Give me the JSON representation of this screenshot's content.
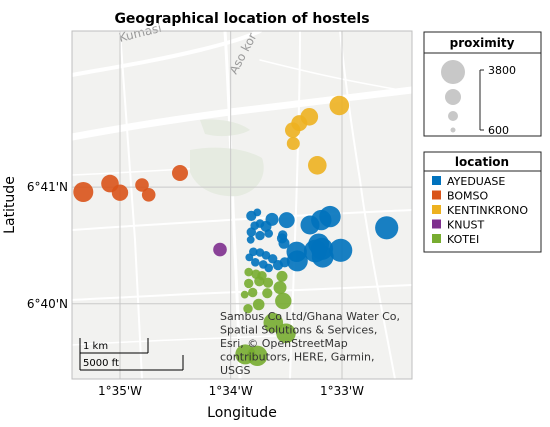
{
  "chart_data": {
    "type": "scatter",
    "title": "Geographical location of hostels",
    "xlabel": "Longitude",
    "ylabel": "Latitude",
    "xlim": [
      -1.5905,
      -1.5395
    ],
    "ylim": [
      6.656,
      6.7055
    ],
    "grid": true,
    "x_ticks": [
      {
        "value": -1.5833,
        "label": "1°35'W"
      },
      {
        "value": -1.5667,
        "label": "1°34'W"
      },
      {
        "value": -1.55,
        "label": "1°33'W"
      }
    ],
    "y_ticks": [
      {
        "value": 6.6833,
        "label": "6°41'N"
      },
      {
        "value": 6.6667,
        "label": "6°40'N"
      }
    ],
    "size_legend": {
      "title": "proximity",
      "max_label": "3800",
      "min_label": "600",
      "max_value": 3800,
      "min_value": 600
    },
    "legend": {
      "title": "location",
      "placement": "right",
      "entries": [
        {
          "name": "AYEDUASE",
          "color": "#0072BD"
        },
        {
          "name": "BOMSO",
          "color": "#D95319"
        },
        {
          "name": "KENTINKRONO",
          "color": "#EDB120"
        },
        {
          "name": "KNUST",
          "color": "#7E2F8E"
        },
        {
          "name": "KOTEI",
          "color": "#77AC30"
        }
      ]
    },
    "series": [
      {
        "name": "AYEDUASE",
        "color": "#0072BD",
        "points": [
          [
            -1.5636,
            6.6792,
            1200
          ],
          [
            -1.5627,
            6.6797,
            900
          ],
          [
            -1.5631,
            6.6778,
            1000
          ],
          [
            -1.5623,
            6.6781,
            1000
          ],
          [
            -1.5614,
            6.6777,
            1300
          ],
          [
            -1.5605,
            6.6787,
            1600
          ],
          [
            -1.5583,
            6.6786,
            2100
          ],
          [
            -1.5548,
            6.6779,
            2700
          ],
          [
            -1.5531,
            6.6786,
            3000
          ],
          [
            -1.5518,
            6.6791,
            3200
          ],
          [
            -1.5433,
            6.6775,
            3600
          ],
          [
            -1.5636,
            6.6769,
            1100
          ],
          [
            -1.5623,
            6.6764,
            1100
          ],
          [
            -1.561,
            6.6767,
            1000
          ],
          [
            -1.559,
            6.676,
            1200
          ],
          [
            -1.5587,
            6.6753,
            1300
          ],
          [
            -1.5568,
            6.6741,
            3000
          ],
          [
            -1.554,
            6.6742,
            3500
          ],
          [
            -1.5535,
            6.6752,
            3100
          ],
          [
            -1.553,
            6.6745,
            3400
          ],
          [
            -1.5502,
            6.6743,
            3600
          ],
          [
            -1.5567,
            6.6728,
            3100
          ],
          [
            -1.5529,
            6.6734,
            3300
          ],
          [
            -1.5633,
            6.6741,
            1000
          ],
          [
            -1.5623,
            6.674,
            1000
          ],
          [
            -1.5614,
            6.6736,
            1000
          ],
          [
            -1.5604,
            6.6731,
            1100
          ],
          [
            -1.5639,
            6.6733,
            900
          ],
          [
            -1.563,
            6.6726,
            1000
          ],
          [
            -1.5618,
            6.6723,
            1000
          ],
          [
            -1.5596,
            6.6722,
            1200
          ],
          [
            -1.5586,
            6.6726,
            1200
          ],
          [
            -1.561,
            6.6718,
            1000
          ],
          [
            -1.5589,
            6.6765,
            1100
          ],
          [
            -1.5637,
            6.6758,
            900
          ]
        ]
      },
      {
        "name": "BOMSO",
        "color": "#D95319",
        "points": [
          [
            -1.5888,
            6.6826,
            2900
          ],
          [
            -1.5848,
            6.6838,
            2400
          ],
          [
            -1.5833,
            6.6825,
            2200
          ],
          [
            -1.58,
            6.6836,
            1700
          ],
          [
            -1.579,
            6.6822,
            1700
          ],
          [
            -1.5743,
            6.6853,
            2100
          ]
        ]
      },
      {
        "name": "KENTINKRONO",
        "color": "#EDB120",
        "points": [
          [
            -1.5504,
            6.6949,
            2800
          ],
          [
            -1.5549,
            6.6933,
            2400
          ],
          [
            -1.5564,
            6.6924,
            2100
          ],
          [
            -1.5574,
            6.6914,
            2000
          ],
          [
            -1.5573,
            6.6895,
            1600
          ],
          [
            -1.5537,
            6.6864,
            2600
          ]
        ]
      },
      {
        "name": "KNUST",
        "color": "#7E2F8E",
        "points": [
          [
            -1.5683,
            6.6744,
            1700
          ]
        ]
      },
      {
        "name": "KOTEI",
        "color": "#77AC30",
        "points": [
          [
            -1.564,
            6.6712,
            1000
          ],
          [
            -1.5629,
            6.6709,
            1100
          ],
          [
            -1.562,
            6.6707,
            1100
          ],
          [
            -1.559,
            6.6706,
            1300
          ],
          [
            -1.564,
            6.6696,
            1100
          ],
          [
            -1.5624,
            6.6699,
            1200
          ],
          [
            -1.5611,
            6.6697,
            1200
          ],
          [
            -1.5593,
            6.669,
            1600
          ],
          [
            -1.5646,
            6.668,
            900
          ],
          [
            -1.5634,
            6.6683,
            1100
          ],
          [
            -1.5612,
            6.6682,
            1200
          ],
          [
            -1.5588,
            6.6671,
            2200
          ],
          [
            -1.5625,
            6.6666,
            1400
          ],
          [
            -1.5641,
            6.666,
            1100
          ],
          [
            -1.5603,
            6.664,
            2800
          ],
          [
            -1.5584,
            6.6625,
            2800
          ],
          [
            -1.5627,
            6.6593,
            3000
          ],
          [
            -1.5645,
            6.6595,
            2900
          ]
        ]
      }
    ],
    "basemap": {
      "labels": [
        "Kumasi",
        "Aso kor"
      ],
      "attribution": "Sambus Co Ltd/Ghana Water Co, Spatial Solutions & Services, Esri, © OpenStreetMap contributors, HERE, Garmin, USGS",
      "scalebar_km": "1 km",
      "scalebar_ft": "5000 ft"
    }
  }
}
